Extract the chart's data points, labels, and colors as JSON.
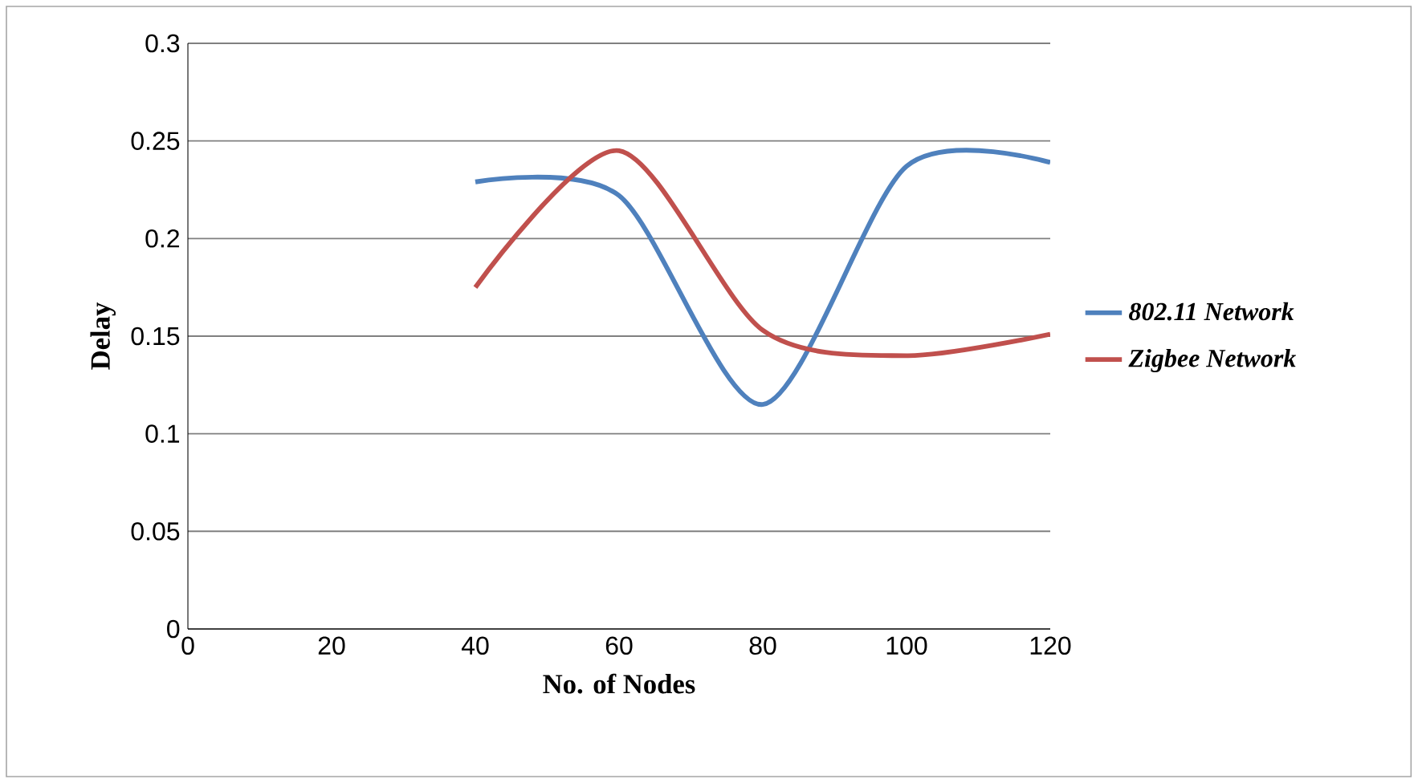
{
  "chart_data": {
    "type": "line",
    "xlabel": "No. of  Nodes",
    "ylabel": "Delay",
    "x": [
      40,
      60,
      80,
      100,
      120
    ],
    "series": [
      {
        "name": "802.11 Network",
        "color": "#4f81bd",
        "values": [
          0.229,
          0.222,
          0.115,
          0.237,
          0.239
        ]
      },
      {
        "name": "Zigbee Network",
        "color": "#c0504d",
        "values": [
          0.175,
          0.245,
          0.153,
          0.14,
          0.151
        ]
      }
    ],
    "xlim": [
      0,
      120
    ],
    "ylim": [
      0,
      0.3
    ],
    "xticks": [
      0,
      20,
      40,
      60,
      80,
      100,
      120
    ],
    "yticks": [
      0,
      0.05,
      0.1,
      0.15,
      0.2,
      0.25,
      0.3
    ],
    "grid": "y",
    "legend": "right",
    "marker": "none",
    "line_style": "solid"
  }
}
